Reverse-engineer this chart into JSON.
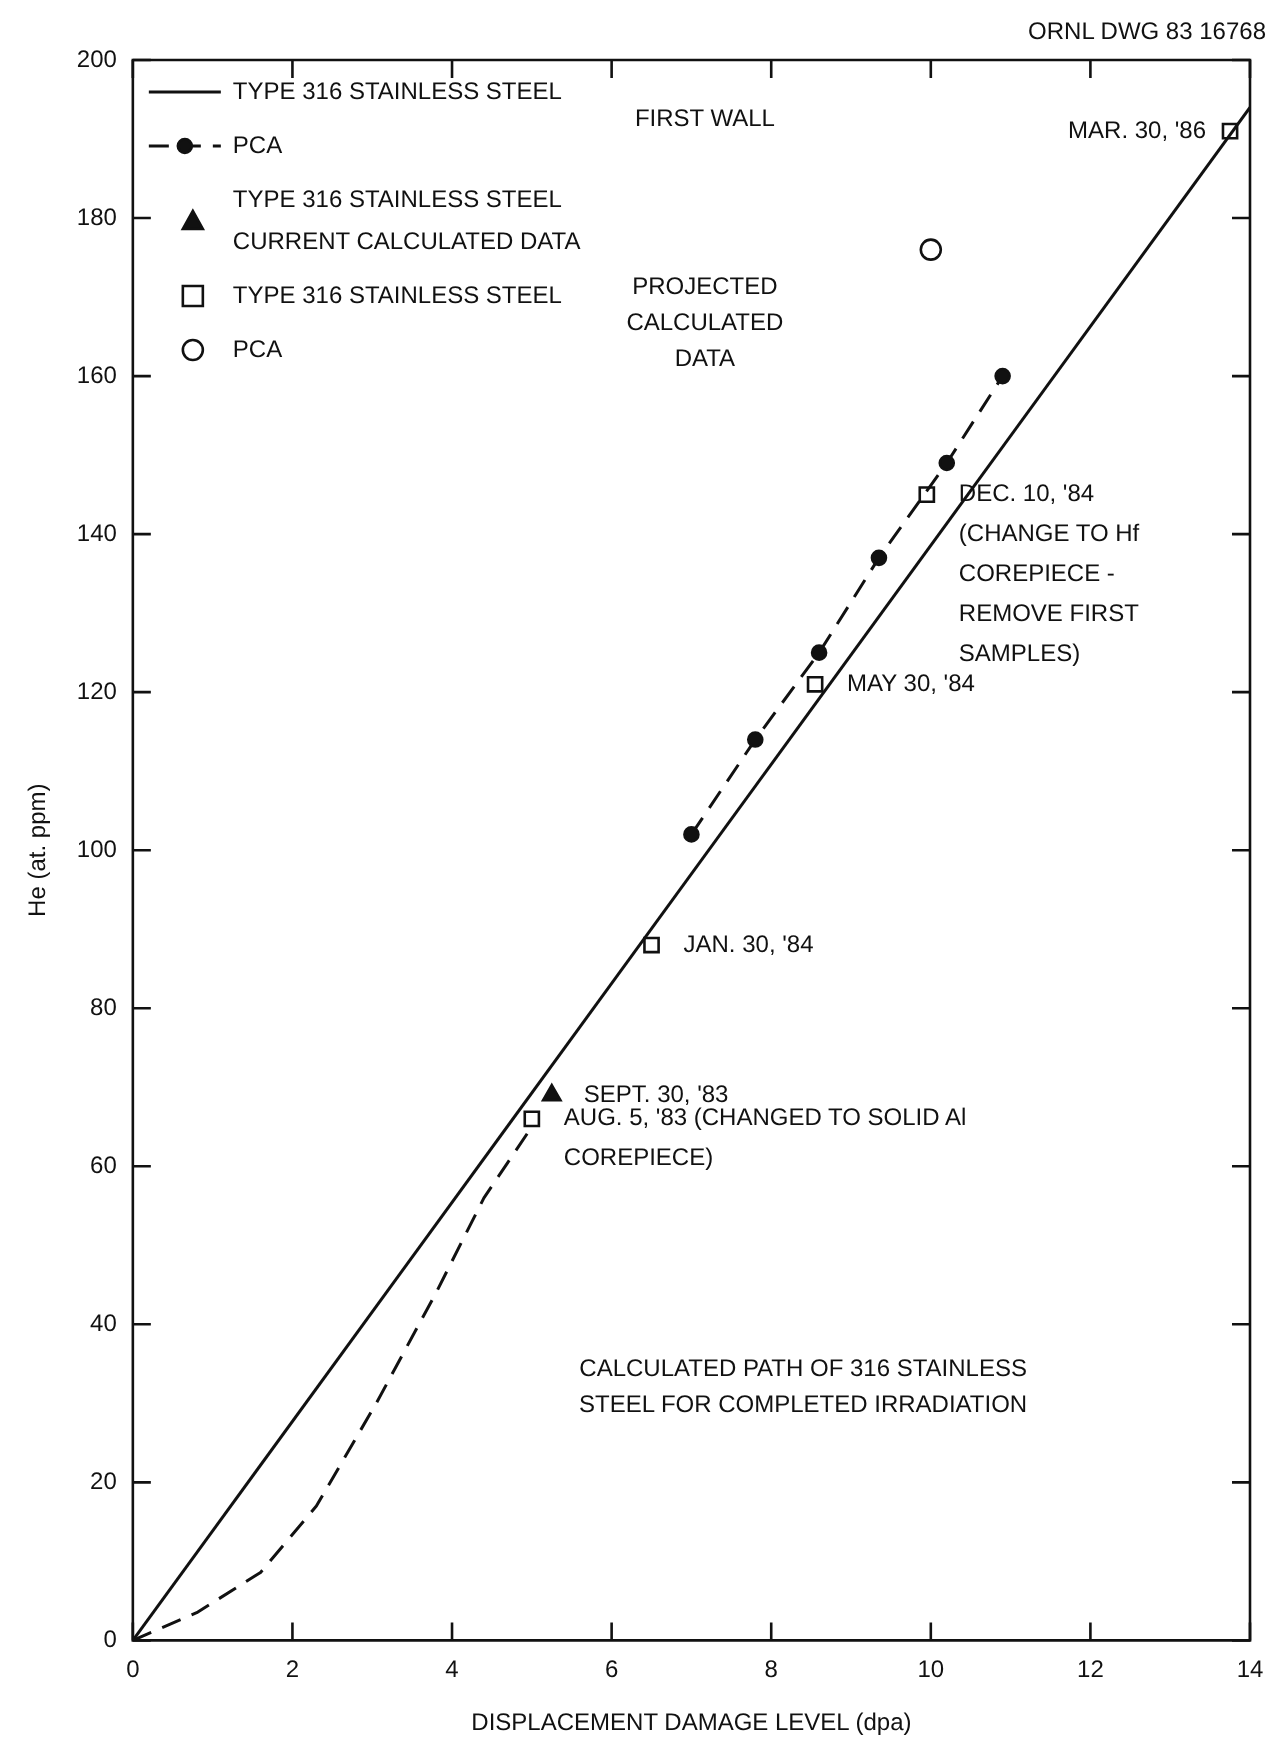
{
  "chart_data": {
    "type": "line",
    "xlabel": "DISPLACEMENT DAMAGE LEVEL (dpa)",
    "ylabel": "He (at. ppm)",
    "xlim": [
      0,
      14
    ],
    "xticks": [
      0,
      2,
      4,
      6,
      8,
      10,
      12,
      14
    ],
    "ylim": [
      0,
      200
    ],
    "yticks": [
      0,
      20,
      40,
      60,
      80,
      100,
      120,
      140,
      160,
      180,
      200
    ],
    "grid": false,
    "legend": "top left",
    "series": [
      {
        "name": "TYPE 316 STAINLESS STEEL",
        "color": "#111111",
        "line_style": "solid",
        "marker": "none",
        "x": [
          0,
          14
        ],
        "values": [
          0,
          194
        ]
      },
      {
        "name": "PCA",
        "color": "#111111",
        "line_style": "dashed",
        "marker": "circle",
        "x": [
          7.0,
          7.8,
          8.6,
          9.35,
          10.2,
          10.9
        ],
        "values": [
          102,
          114,
          125,
          137,
          149,
          160
        ]
      },
      {
        "name": "TYPE 316 STAINLESS STEEL CURRENT CALCULATED DATA",
        "type": "scatter",
        "color": "#111111",
        "marker": "triangle",
        "x": [
          5.25
        ],
        "values": [
          69
        ]
      },
      {
        "name": "TYPE 316 STAINLESS STEEL",
        "type": "scatter",
        "color": "#111111",
        "marker": "square",
        "x": [
          5.0,
          6.5,
          8.55,
          9.95,
          13.75
        ],
        "values": [
          66,
          88,
          121,
          145,
          191
        ]
      },
      {
        "name": "PCA",
        "type": "scatter",
        "color": "#111111",
        "marker": "circle",
        "x": [
          10.0
        ],
        "values": [
          176
        ]
      },
      {
        "color": "#111111",
        "line_style": "dashed",
        "marker": "none",
        "x": [
          0,
          0.8,
          1.6,
          2.3,
          3.05,
          3.8,
          4.4,
          5.0
        ],
        "values": [
          0,
          3.5,
          8.6,
          17,
          30,
          44,
          56,
          65
        ]
      }
    ],
    "annotations": [
      "FIRST WALL",
      "PROJECTED CALCULATED DATA",
      "ORNL DWG 83 16768",
      "CALCULATED PATH OF 316 STAINLESS STEEL FOR COMPLETED IRRADIATION",
      {
        "text": "MAR. 30, '86",
        "x": 13.75,
        "y": 191
      },
      {
        "text": "DEC. 10, '84 (CHANGE TO Hf COREPIECE - REMOVE FIRST SAMPLES)",
        "x": 9.95,
        "y": 145
      },
      {
        "text": "MAY 30, '84",
        "x": 8.55,
        "y": 121
      },
      {
        "text": "JAN. 30, '84",
        "x": 6.5,
        "y": 88
      },
      {
        "text": "SEPT. 30, '83",
        "x": 5.25,
        "y": 69
      },
      {
        "text": "AUG. 5, '83 (CHANGED TO SOLID Al COREPIECE)",
        "x": 5.0,
        "y": 66
      }
    ]
  }
}
